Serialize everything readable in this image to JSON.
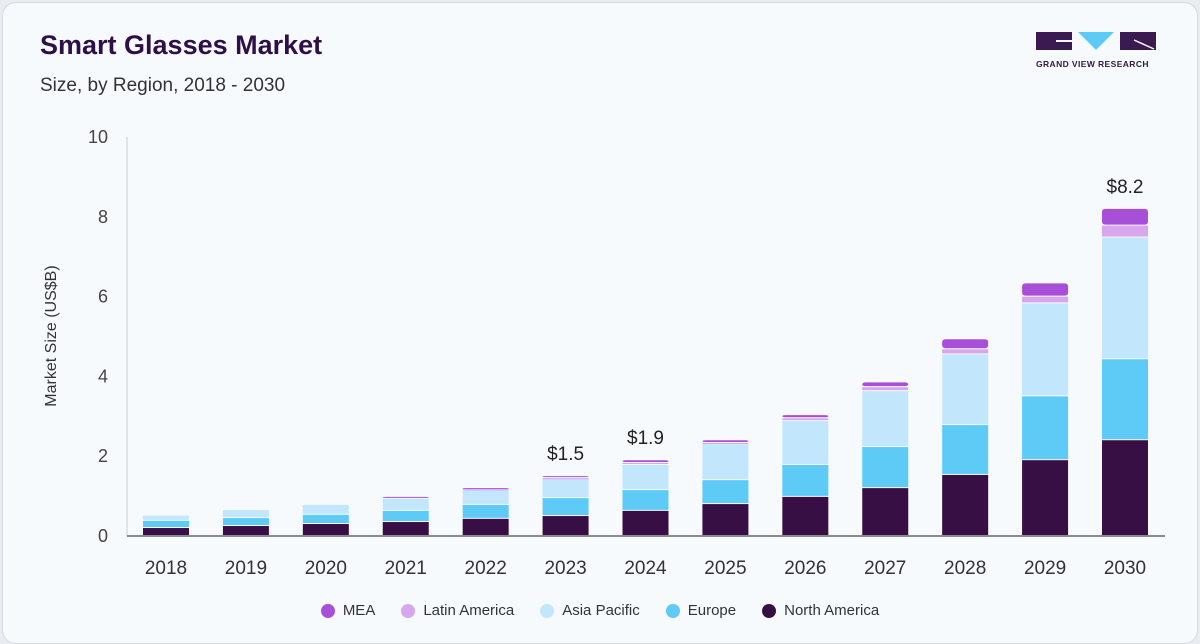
{
  "header": {
    "title": "Smart Glasses Market",
    "subtitle": "Size, by Region, 2018 - 2030",
    "logo_text": "GRAND VIEW RESEARCH"
  },
  "chart_data": {
    "type": "bar",
    "stacked": true,
    "ylabel": "Market Size (US$B)",
    "xlabel": "",
    "ylim": [
      0,
      10
    ],
    "yticks": [
      0,
      2,
      4,
      6,
      8,
      10
    ],
    "grid": false,
    "legend_position": "bottom",
    "categories": [
      "2018",
      "2019",
      "2020",
      "2021",
      "2022",
      "2023",
      "2024",
      "2025",
      "2026",
      "2027",
      "2028",
      "2029",
      "2030"
    ],
    "series": [
      {
        "name": "North America",
        "color": "#380f45",
        "values": [
          0.2,
          0.25,
          0.3,
          0.35,
          0.43,
          0.5,
          0.63,
          0.8,
          0.98,
          1.2,
          1.53,
          1.9,
          2.4
        ]
      },
      {
        "name": "Europe",
        "color": "#5ecbf6",
        "values": [
          0.18,
          0.2,
          0.23,
          0.28,
          0.35,
          0.45,
          0.52,
          0.6,
          0.8,
          1.03,
          1.25,
          1.6,
          2.03
        ]
      },
      {
        "name": "Asia Pacific",
        "color": "#c2e6fb",
        "values": [
          0.13,
          0.2,
          0.25,
          0.3,
          0.37,
          0.48,
          0.63,
          0.9,
          1.1,
          1.4,
          1.77,
          2.33,
          3.05
        ]
      },
      {
        "name": "Latin America",
        "color": "#d8a6ea",
        "values": [
          0.0,
          0.0,
          0.0,
          0.0,
          0.02,
          0.02,
          0.05,
          0.03,
          0.07,
          0.1,
          0.13,
          0.17,
          0.3
        ]
      },
      {
        "name": "MEA",
        "color": "#a84fd8",
        "values": [
          0.0,
          0.0,
          0.0,
          0.05,
          0.03,
          0.05,
          0.07,
          0.07,
          0.08,
          0.12,
          0.25,
          0.33,
          0.42
        ]
      }
    ],
    "annotations": [
      {
        "category": "2023",
        "text": "$1.5"
      },
      {
        "category": "2024",
        "text": "$1.9"
      },
      {
        "category": "2030",
        "text": "$8.2"
      }
    ],
    "legend_order": [
      "MEA",
      "Latin America",
      "Asia Pacific",
      "Europe",
      "North America"
    ]
  }
}
